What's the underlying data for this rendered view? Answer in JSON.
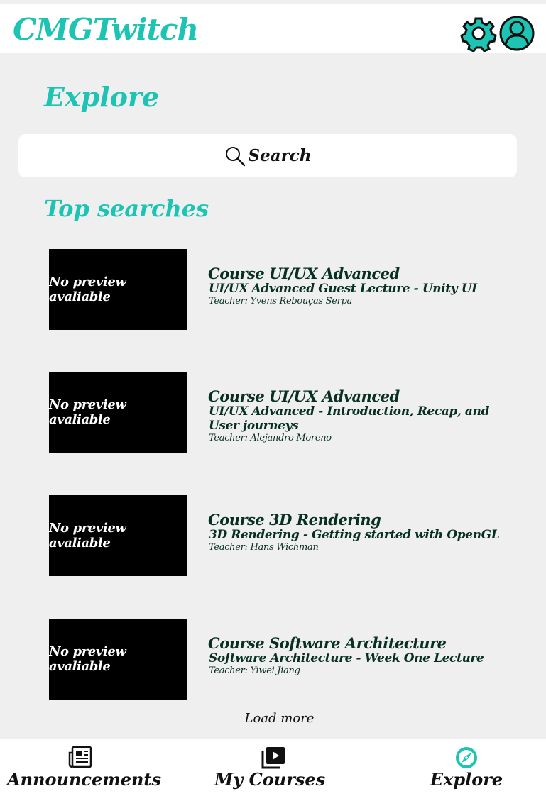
{
  "app": {
    "brand": "CMGTwitch",
    "accent_color": "#1dc4b4",
    "header_icons": [
      "gear-icon",
      "user-avatar-icon"
    ]
  },
  "explore": {
    "title": "Explore",
    "search_label": "Search",
    "search_icon": "search-icon"
  },
  "top_searches": {
    "title": "Top searches",
    "items": [
      {
        "thumbnail": "No preview avaliable",
        "course": "Course UI/UX Advanced",
        "lecture": "UI/UX Advanced Guest Lecture - Unity UI",
        "teacher": "Teacher: Yvens Rebouças Serpa"
      },
      {
        "thumbnail": "No preview avaliable",
        "course": "Course UI/UX Advanced",
        "lecture": "UI/UX Advanced - Introduction, Recap, and User journeys",
        "teacher": "Teacher: Alejandro Moreno"
      },
      {
        "thumbnail": "No preview avaliable",
        "course": "Course 3D Rendering",
        "lecture": "3D Rendering - Getting started with OpenGL",
        "teacher": "Teacher: Hans Wichman"
      },
      {
        "thumbnail": "No preview avaliable",
        "course": "Course Software Architecture",
        "lecture": "Software Architecture - Week One Lecture",
        "teacher": "Teacher: Yiwei Jiang"
      }
    ],
    "load_more": "Load more"
  },
  "bottom_nav": {
    "items": [
      {
        "label": "Announcements",
        "icon": "newspaper-icon"
      },
      {
        "label": "My Courses",
        "icon": "video-library-icon"
      },
      {
        "label": "Explore",
        "icon": "compass-icon"
      }
    ]
  }
}
